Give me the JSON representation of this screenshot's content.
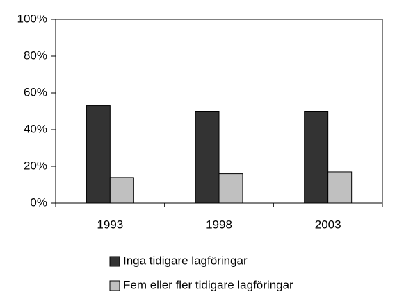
{
  "chart_data": {
    "type": "bar",
    "categories": [
      "1993",
      "1998",
      "2003"
    ],
    "series": [
      {
        "name": "Inga tidigare lagföringar",
        "color": "#333333",
        "values": [
          53,
          50,
          50
        ]
      },
      {
        "name": "Fem eller fler tidigare lagföringar",
        "color": "#c0c0c0",
        "values": [
          14,
          16,
          17
        ]
      }
    ],
    "ylim": [
      0,
      100
    ],
    "yticks": [
      {
        "value": 0,
        "label": "0%"
      },
      {
        "value": 20,
        "label": "20%"
      },
      {
        "value": 40,
        "label": "40%"
      },
      {
        "value": 60,
        "label": "60%"
      },
      {
        "value": 80,
        "label": "80%"
      },
      {
        "value": 100,
        "label": "100%"
      }
    ],
    "legend": "bottom"
  }
}
